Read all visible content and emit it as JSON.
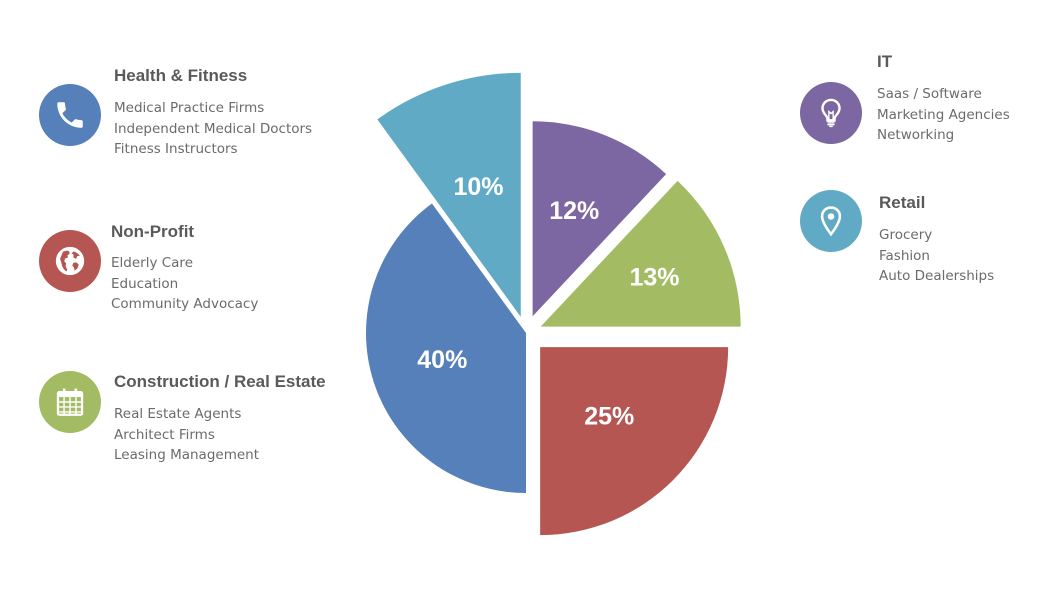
{
  "chart_data": {
    "type": "pie",
    "title": "",
    "slices": [
      {
        "label": "Health & Fitness",
        "value": 40,
        "display": "40%",
        "color": "#5680b9"
      },
      {
        "label": "IT",
        "value": 12,
        "display": "12%",
        "color": "#7c67a2"
      },
      {
        "label": "Retail",
        "value": 10,
        "display": "10%",
        "color": "#61aac5"
      },
      {
        "label": "Construction / Real Estate",
        "value": 13,
        "display": "13%",
        "color": "#a3bb63"
      },
      {
        "label": "Non-Profit",
        "value": 25,
        "display": "25%",
        "color": "#b55652"
      }
    ]
  },
  "categories": {
    "health": {
      "title": "Health & Fitness",
      "icon": "phone-icon",
      "color": "#5680b9",
      "items": [
        "Medical Practice Firms",
        "Independent Medical Doctors",
        "Fitness Instructors"
      ]
    },
    "nonprofit": {
      "title": "Non-Profit",
      "icon": "globe-icon",
      "color": "#b55652",
      "items": [
        "Elderly Care",
        "Education",
        "Community Advocacy"
      ]
    },
    "construction": {
      "title": "Construction / Real Estate",
      "icon": "calendar-icon",
      "color": "#a3bb63",
      "items": [
        "Real Estate Agents",
        "Architect Firms",
        "Leasing Management"
      ]
    },
    "it": {
      "title": "IT",
      "icon": "lightbulb-icon",
      "color": "#7c67a2",
      "items": [
        "Saas / Software",
        "Marketing Agencies",
        "Networking"
      ]
    },
    "retail": {
      "title": "Retail",
      "icon": "map-pin-icon",
      "color": "#61aac5",
      "items": [
        "Grocery",
        "Fashion",
        "Auto Dealerships"
      ]
    }
  }
}
